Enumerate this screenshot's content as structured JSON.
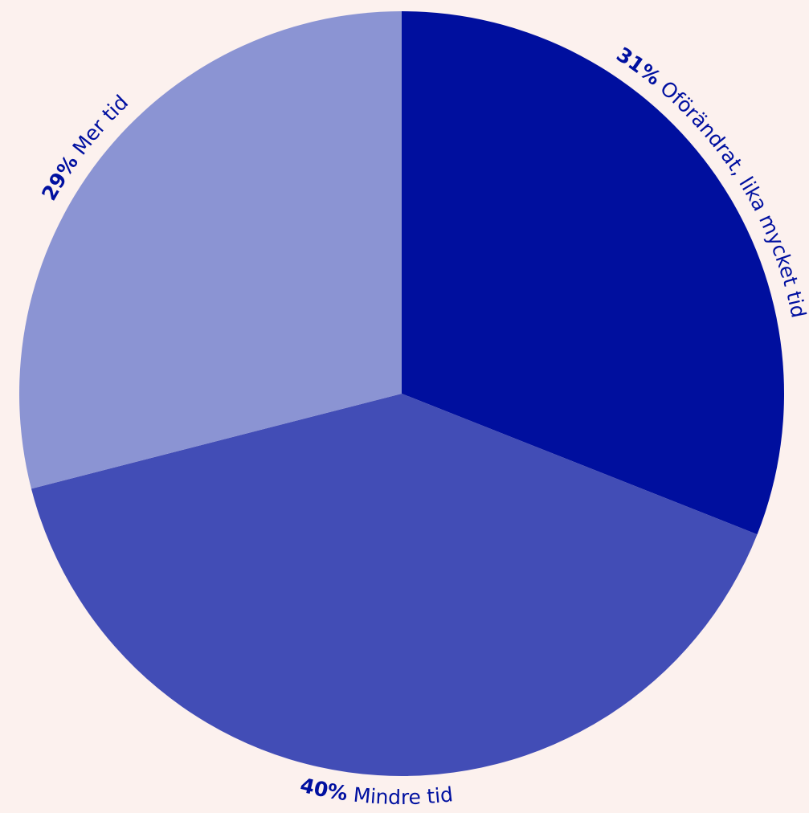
{
  "background": "#fcf1ee",
  "label_color": "#0010a0",
  "chart_data": {
    "type": "pie",
    "start_angle_deg": 0,
    "direction": "clockwise",
    "slices": [
      {
        "percent_label": "31%",
        "label": "Oförändrat, lika mycket tid",
        "value": 31,
        "color": "#000f9e"
      },
      {
        "percent_label": "40%",
        "label": "Mindre tid",
        "value": 40,
        "color": "#424db6"
      },
      {
        "percent_label": "29%",
        "label": "Mer tid",
        "value": 29,
        "color": "#8b94d3"
      }
    ]
  }
}
